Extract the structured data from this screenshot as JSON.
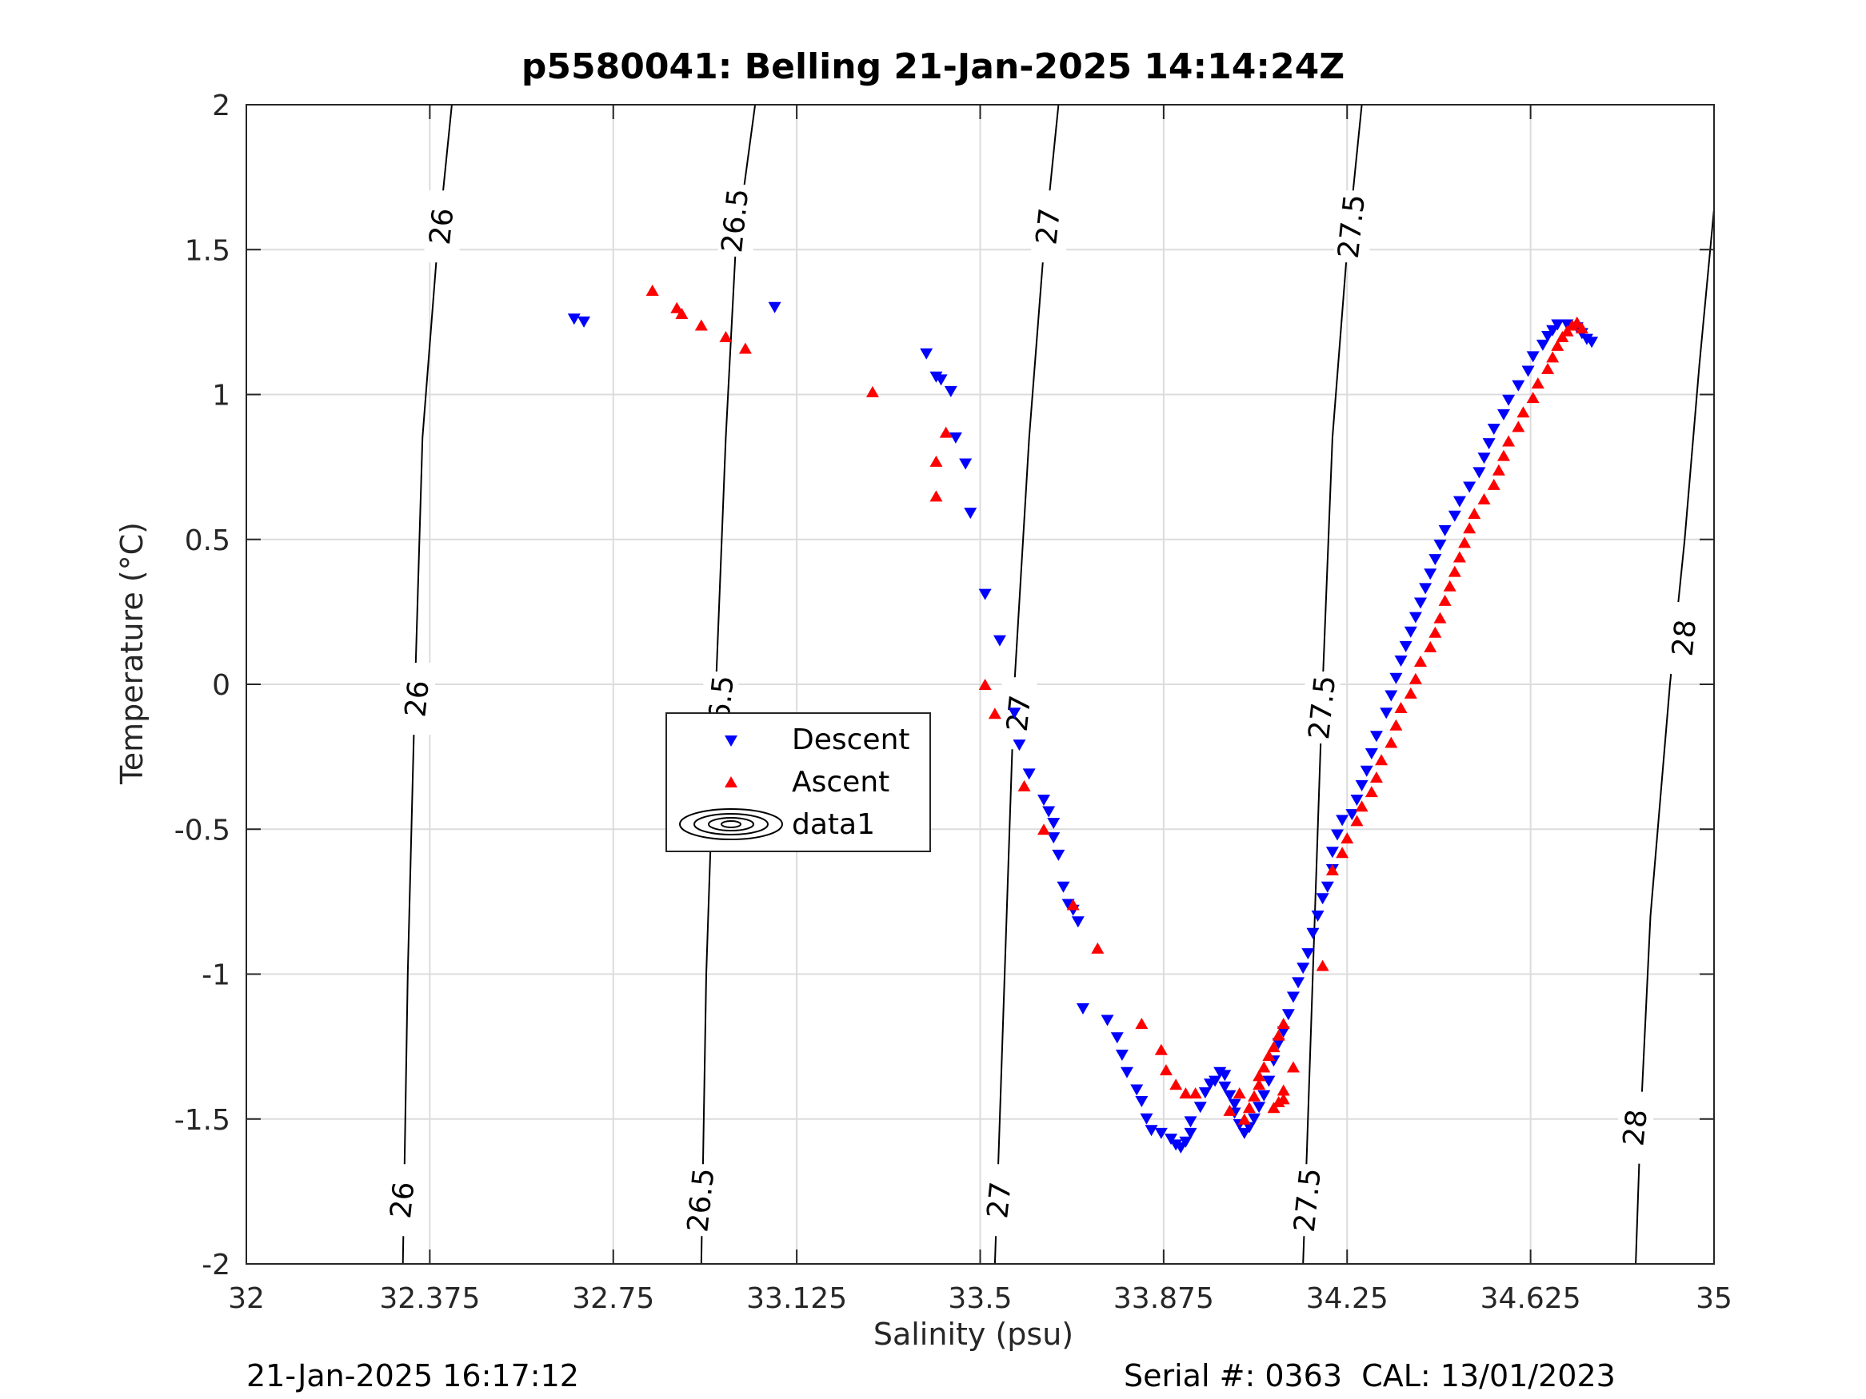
{
  "title": "p5580041: Belling 21-Jan-2025 14:14:24Z",
  "footer": {
    "left": "21-Jan-2025 16:17:12",
    "serial": "Serial #: 0363",
    "cal": "CAL: 13/01/2023"
  },
  "chart_data": {
    "type": "scatter",
    "title": "p5580041: Belling 21-Jan-2025 14:14:24Z",
    "xlabel": "Salinity (psu)",
    "ylabel": "Temperature (°C)",
    "xlim": [
      32,
      35
    ],
    "ylim": [
      -2,
      2
    ],
    "xticks": [
      32,
      32.375,
      32.75,
      33.125,
      33.5,
      33.875,
      34.25,
      34.625,
      35
    ],
    "xtick_labels": [
      "32",
      "32.375",
      "32.75",
      "33.125",
      "33.5",
      "33.875",
      "34.25",
      "34.625",
      "35"
    ],
    "yticks": [
      2,
      1.5,
      1,
      0.5,
      0,
      -0.5,
      -1,
      -1.5,
      -2
    ],
    "ytick_labels": [
      "2",
      "1.5",
      "1",
      "0.5",
      "0",
      "-0.5",
      "-1",
      "-1.5",
      "-2"
    ],
    "grid": true,
    "legend": {
      "placement": "center-left",
      "entries": [
        "Descent",
        "Ascent",
        "data1"
      ]
    },
    "colors": {
      "descent": "#0000ff",
      "ascent": "#ff0000",
      "contour": "#000000"
    },
    "contours": [
      {
        "label": "26",
        "points": [
          [
            32.42,
            2.0
          ],
          [
            32.39,
            1.5
          ],
          [
            32.36,
            0.85
          ],
          [
            32.345,
            0.0
          ],
          [
            32.33,
            -1.0
          ],
          [
            32.32,
            -2.0
          ]
        ],
        "label_positions": [
          [
            32.4,
            1.58
          ],
          [
            32.35,
            -0.05
          ],
          [
            32.32,
            -1.78
          ]
        ]
      },
      {
        "label": "26.5",
        "points": [
          [
            33.04,
            2.0
          ],
          [
            33.0,
            1.5
          ],
          [
            32.98,
            0.85
          ],
          [
            32.96,
            0.0
          ],
          [
            32.94,
            -1.0
          ],
          [
            32.93,
            -2.0
          ]
        ],
        "label_positions": [
          [
            33.0,
            1.6
          ],
          [
            32.97,
            -0.08
          ],
          [
            32.93,
            -1.78
          ]
        ]
      },
      {
        "label": "27",
        "points": [
          [
            33.66,
            2.0
          ],
          [
            33.63,
            1.5
          ],
          [
            33.6,
            0.85
          ],
          [
            33.57,
            0.0
          ],
          [
            33.55,
            -1.0
          ],
          [
            33.53,
            -2.0
          ]
        ],
        "label_positions": [
          [
            33.64,
            1.58
          ],
          [
            33.58,
            -0.1
          ],
          [
            33.54,
            -1.78
          ]
        ]
      },
      {
        "label": "27.5",
        "points": [
          [
            34.28,
            2.0
          ],
          [
            34.25,
            1.5
          ],
          [
            34.22,
            0.85
          ],
          [
            34.2,
            0.0
          ],
          [
            34.18,
            -1.0
          ],
          [
            34.16,
            -2.0
          ]
        ],
        "label_positions": [
          [
            34.26,
            1.58
          ],
          [
            34.2,
            -0.08
          ],
          [
            34.17,
            -1.78
          ]
        ]
      },
      {
        "label": "28",
        "points": [
          [
            35.0,
            1.64
          ],
          [
            34.97,
            1.1
          ],
          [
            34.94,
            0.5
          ],
          [
            34.91,
            0.0
          ],
          [
            34.87,
            -0.8
          ],
          [
            34.85,
            -1.5
          ],
          [
            34.84,
            -2.0
          ]
        ],
        "label_positions": [
          [
            34.94,
            0.16
          ],
          [
            34.84,
            -1.53
          ]
        ]
      }
    ],
    "series": [
      {
        "name": "Descent",
        "marker": "triangle-down",
        "color": "#0000ff",
        "points": [
          [
            32.67,
            1.26
          ],
          [
            32.69,
            1.25
          ],
          [
            33.08,
            1.3
          ],
          [
            33.39,
            1.14
          ],
          [
            33.41,
            1.06
          ],
          [
            33.42,
            1.05
          ],
          [
            33.44,
            1.01
          ],
          [
            33.45,
            0.85
          ],
          [
            33.47,
            0.76
          ],
          [
            33.48,
            0.59
          ],
          [
            33.51,
            0.31
          ],
          [
            33.54,
            0.15
          ],
          [
            33.57,
            -0.1
          ],
          [
            33.58,
            -0.21
          ],
          [
            33.6,
            -0.31
          ],
          [
            33.63,
            -0.4
          ],
          [
            33.64,
            -0.44
          ],
          [
            33.65,
            -0.48
          ],
          [
            33.65,
            -0.53
          ],
          [
            33.66,
            -0.59
          ],
          [
            33.67,
            -0.7
          ],
          [
            33.68,
            -0.76
          ],
          [
            33.69,
            -0.78
          ],
          [
            33.7,
            -0.82
          ],
          [
            33.71,
            -1.12
          ],
          [
            33.76,
            -1.16
          ],
          [
            33.78,
            -1.22
          ],
          [
            33.79,
            -1.28
          ],
          [
            33.8,
            -1.34
          ],
          [
            33.82,
            -1.4
          ],
          [
            33.83,
            -1.44
          ],
          [
            33.84,
            -1.5
          ],
          [
            33.85,
            -1.54
          ],
          [
            33.87,
            -1.55
          ],
          [
            33.89,
            -1.57
          ],
          [
            33.9,
            -1.59
          ],
          [
            33.91,
            -1.6
          ],
          [
            33.92,
            -1.58
          ],
          [
            33.93,
            -1.55
          ],
          [
            33.93,
            -1.51
          ],
          [
            33.95,
            -1.46
          ],
          [
            33.96,
            -1.41
          ],
          [
            33.97,
            -1.38
          ],
          [
            33.98,
            -1.37
          ],
          [
            33.99,
            -1.34
          ],
          [
            34.0,
            -1.35
          ],
          [
            34.0,
            -1.39
          ],
          [
            34.01,
            -1.42
          ],
          [
            34.02,
            -1.45
          ],
          [
            34.02,
            -1.48
          ],
          [
            34.03,
            -1.52
          ],
          [
            34.04,
            -1.55
          ],
          [
            34.05,
            -1.53
          ],
          [
            34.06,
            -1.5
          ],
          [
            34.07,
            -1.46
          ],
          [
            34.08,
            -1.42
          ],
          [
            34.09,
            -1.37
          ],
          [
            34.1,
            -1.3
          ],
          [
            34.11,
            -1.24
          ],
          [
            34.12,
            -1.2
          ],
          [
            34.13,
            -1.14
          ],
          [
            34.14,
            -1.08
          ],
          [
            34.15,
            -1.03
          ],
          [
            34.16,
            -0.98
          ],
          [
            34.17,
            -0.93
          ],
          [
            34.18,
            -0.86
          ],
          [
            34.19,
            -0.8
          ],
          [
            34.2,
            -0.74
          ],
          [
            34.21,
            -0.7
          ],
          [
            34.22,
            -0.64
          ],
          [
            34.22,
            -0.58
          ],
          [
            34.23,
            -0.52
          ],
          [
            34.24,
            -0.47
          ],
          [
            34.26,
            -0.45
          ],
          [
            34.27,
            -0.4
          ],
          [
            34.28,
            -0.35
          ],
          [
            34.29,
            -0.3
          ],
          [
            34.3,
            -0.24
          ],
          [
            34.31,
            -0.18
          ],
          [
            34.33,
            -0.1
          ],
          [
            34.34,
            -0.04
          ],
          [
            34.35,
            0.02
          ],
          [
            34.36,
            0.08
          ],
          [
            34.37,
            0.13
          ],
          [
            34.38,
            0.18
          ],
          [
            34.39,
            0.23
          ],
          [
            34.4,
            0.28
          ],
          [
            34.41,
            0.33
          ],
          [
            34.42,
            0.38
          ],
          [
            34.43,
            0.43
          ],
          [
            34.44,
            0.48
          ],
          [
            34.45,
            0.53
          ],
          [
            34.47,
            0.58
          ],
          [
            34.48,
            0.63
          ],
          [
            34.5,
            0.68
          ],
          [
            34.52,
            0.73
          ],
          [
            34.53,
            0.78
          ],
          [
            34.54,
            0.83
          ],
          [
            34.55,
            0.88
          ],
          [
            34.57,
            0.93
          ],
          [
            34.58,
            0.98
          ],
          [
            34.6,
            1.03
          ],
          [
            34.62,
            1.08
          ],
          [
            34.63,
            1.13
          ],
          [
            34.65,
            1.17
          ],
          [
            34.66,
            1.2
          ],
          [
            34.67,
            1.22
          ],
          [
            34.68,
            1.24
          ],
          [
            34.7,
            1.24
          ],
          [
            34.72,
            1.23
          ],
          [
            34.73,
            1.21
          ],
          [
            34.74,
            1.19
          ],
          [
            34.75,
            1.18
          ]
        ]
      },
      {
        "name": "Ascent",
        "marker": "triangle-up",
        "color": "#ff0000",
        "points": [
          [
            32.83,
            1.36
          ],
          [
            32.88,
            1.3
          ],
          [
            32.89,
            1.28
          ],
          [
            32.93,
            1.24
          ],
          [
            32.98,
            1.2
          ],
          [
            33.02,
            1.16
          ],
          [
            33.28,
            1.01
          ],
          [
            33.43,
            0.87
          ],
          [
            33.41,
            0.77
          ],
          [
            33.41,
            0.65
          ],
          [
            33.51,
            0.0
          ],
          [
            33.53,
            -0.1
          ],
          [
            33.59,
            -0.35
          ],
          [
            33.63,
            -0.5
          ],
          [
            33.69,
            -0.76
          ],
          [
            33.74,
            -0.91
          ],
          [
            33.83,
            -1.17
          ],
          [
            33.87,
            -1.26
          ],
          [
            33.88,
            -1.33
          ],
          [
            33.9,
            -1.38
          ],
          [
            33.92,
            -1.41
          ],
          [
            33.94,
            -1.41
          ],
          [
            34.03,
            -1.41
          ],
          [
            34.01,
            -1.47
          ],
          [
            34.04,
            -1.5
          ],
          [
            34.05,
            -1.46
          ],
          [
            34.06,
            -1.42
          ],
          [
            34.07,
            -1.38
          ],
          [
            34.07,
            -1.35
          ],
          [
            34.08,
            -1.32
          ],
          [
            34.09,
            -1.28
          ],
          [
            34.1,
            -1.25
          ],
          [
            34.11,
            -1.21
          ],
          [
            34.12,
            -1.17
          ],
          [
            34.14,
            -1.32
          ],
          [
            34.12,
            -1.4
          ],
          [
            34.1,
            -1.46
          ],
          [
            34.11,
            -1.44
          ],
          [
            34.12,
            -1.43
          ],
          [
            34.2,
            -0.97
          ],
          [
            34.22,
            -0.64
          ],
          [
            34.24,
            -0.58
          ],
          [
            34.25,
            -0.53
          ],
          [
            34.27,
            -0.47
          ],
          [
            34.28,
            -0.42
          ],
          [
            34.3,
            -0.37
          ],
          [
            34.31,
            -0.32
          ],
          [
            34.32,
            -0.26
          ],
          [
            34.34,
            -0.2
          ],
          [
            34.35,
            -0.14
          ],
          [
            34.36,
            -0.08
          ],
          [
            34.38,
            -0.03
          ],
          [
            34.39,
            0.02
          ],
          [
            34.4,
            0.08
          ],
          [
            34.42,
            0.13
          ],
          [
            34.43,
            0.18
          ],
          [
            34.44,
            0.23
          ],
          [
            34.45,
            0.29
          ],
          [
            34.46,
            0.34
          ],
          [
            34.47,
            0.39
          ],
          [
            34.48,
            0.44
          ],
          [
            34.49,
            0.49
          ],
          [
            34.5,
            0.54
          ],
          [
            34.51,
            0.59
          ],
          [
            34.53,
            0.64
          ],
          [
            34.55,
            0.69
          ],
          [
            34.56,
            0.74
          ],
          [
            34.57,
            0.79
          ],
          [
            34.58,
            0.84
          ],
          [
            34.6,
            0.89
          ],
          [
            34.61,
            0.94
          ],
          [
            34.63,
            0.99
          ],
          [
            34.64,
            1.04
          ],
          [
            34.66,
            1.09
          ],
          [
            34.67,
            1.13
          ],
          [
            34.68,
            1.17
          ],
          [
            34.69,
            1.2
          ],
          [
            34.7,
            1.22
          ],
          [
            34.71,
            1.24
          ],
          [
            34.72,
            1.25
          ],
          [
            34.73,
            1.23
          ]
        ]
      }
    ]
  }
}
